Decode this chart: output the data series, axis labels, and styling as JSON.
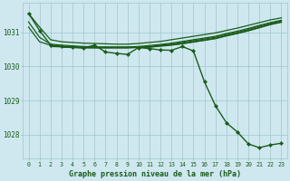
{
  "xlabel": "Graphe pression niveau de la mer (hPa)",
  "background_color": "#cfe8f0",
  "plot_bg_color": "#cfe8f0",
  "grid_color": "#a0c4cc",
  "line_color": "#1a5c1a",
  "text_color": "#1a5c1a",
  "xlim": [
    -0.5,
    23.5
  ],
  "ylim": [
    1027.3,
    1031.85
  ],
  "yticks": [
    1028,
    1029,
    1030,
    1031
  ],
  "xticks": [
    0,
    1,
    2,
    3,
    4,
    5,
    6,
    7,
    8,
    9,
    10,
    11,
    12,
    13,
    14,
    15,
    16,
    17,
    18,
    19,
    20,
    21,
    22,
    23
  ],
  "series": [
    {
      "x": [
        0,
        1,
        2,
        3,
        4,
        5,
        6,
        7,
        8,
        9,
        10,
        11,
        12,
        13,
        14,
        15,
        16,
        17,
        18,
        19,
        20,
        21,
        22,
        23
      ],
      "y": [
        1031.55,
        1031.15,
        1030.78,
        1030.72,
        1030.7,
        1030.68,
        1030.67,
        1030.66,
        1030.65,
        1030.65,
        1030.67,
        1030.7,
        1030.73,
        1030.78,
        1030.83,
        1030.88,
        1030.93,
        1030.98,
        1031.05,
        1031.12,
        1031.2,
        1031.28,
        1031.36,
        1031.42
      ],
      "marker": false,
      "lw": 0.9
    },
    {
      "x": [
        0,
        1,
        2,
        3,
        4,
        5,
        6,
        7,
        8,
        9,
        10,
        11,
        12,
        13,
        14,
        15,
        16,
        17,
        18,
        19,
        20,
        21,
        22,
        23
      ],
      "y": [
        1031.3,
        1030.85,
        1030.65,
        1030.62,
        1030.6,
        1030.58,
        1030.57,
        1030.57,
        1030.57,
        1030.57,
        1030.58,
        1030.61,
        1030.64,
        1030.68,
        1030.73,
        1030.78,
        1030.83,
        1030.88,
        1030.96,
        1031.03,
        1031.11,
        1031.2,
        1031.28,
        1031.35
      ],
      "marker": false,
      "lw": 0.9
    },
    {
      "x": [
        0,
        1,
        2,
        3,
        4,
        5,
        6,
        7,
        8,
        9,
        10,
        11,
        12,
        13,
        14,
        15,
        16,
        17,
        18,
        19,
        20,
        21,
        22,
        23
      ],
      "y": [
        1031.15,
        1030.72,
        1030.62,
        1030.59,
        1030.58,
        1030.56,
        1030.55,
        1030.55,
        1030.55,
        1030.55,
        1030.56,
        1030.58,
        1030.62,
        1030.65,
        1030.7,
        1030.75,
        1030.8,
        1030.85,
        1030.93,
        1031.0,
        1031.08,
        1031.17,
        1031.26,
        1031.33
      ],
      "marker": false,
      "lw": 0.9
    },
    {
      "x": [
        2,
        3,
        4,
        5,
        6,
        7,
        8,
        9,
        10,
        11,
        12,
        13,
        14,
        15,
        16,
        17,
        18,
        19,
        20,
        21,
        22,
        23
      ],
      "y": [
        1030.58,
        1030.57,
        1030.56,
        1030.55,
        1030.55,
        1030.55,
        1030.55,
        1030.55,
        1030.56,
        1030.57,
        1030.6,
        1030.63,
        1030.67,
        1030.72,
        1030.77,
        1030.82,
        1030.9,
        1030.97,
        1031.05,
        1031.14,
        1031.23,
        1031.3
      ],
      "marker": false,
      "lw": 0.9
    },
    {
      "x": [
        3,
        4,
        5,
        6,
        7,
        8,
        9,
        10,
        11,
        12,
        13,
        14,
        15,
        16,
        17,
        18,
        19,
        20,
        21,
        22,
        23
      ],
      "y": [
        1030.56,
        1030.55,
        1030.54,
        1030.54,
        1030.54,
        1030.54,
        1030.54,
        1030.55,
        1030.56,
        1030.59,
        1030.62,
        1030.66,
        1030.71,
        1030.76,
        1030.81,
        1030.89,
        1030.96,
        1031.04,
        1031.13,
        1031.22,
        1031.29
      ],
      "marker": false,
      "lw": 0.9
    },
    {
      "x": [
        0,
        1,
        2,
        3,
        4,
        5,
        6,
        7,
        8,
        9,
        10,
        11,
        12,
        13,
        14,
        15,
        16,
        17,
        18,
        19,
        20,
        21,
        22,
        23
      ],
      "y": [
        1031.55,
        1031.05,
        1030.63,
        1030.58,
        1030.56,
        1030.54,
        1030.62,
        1030.42,
        1030.38,
        1030.35,
        1030.55,
        1030.52,
        1030.48,
        1030.47,
        1030.58,
        1030.45,
        1029.55,
        1028.85,
        1028.35,
        1028.08,
        1027.73,
        1027.62,
        1027.7,
        1027.75
      ],
      "marker": true,
      "lw": 1.0
    }
  ]
}
